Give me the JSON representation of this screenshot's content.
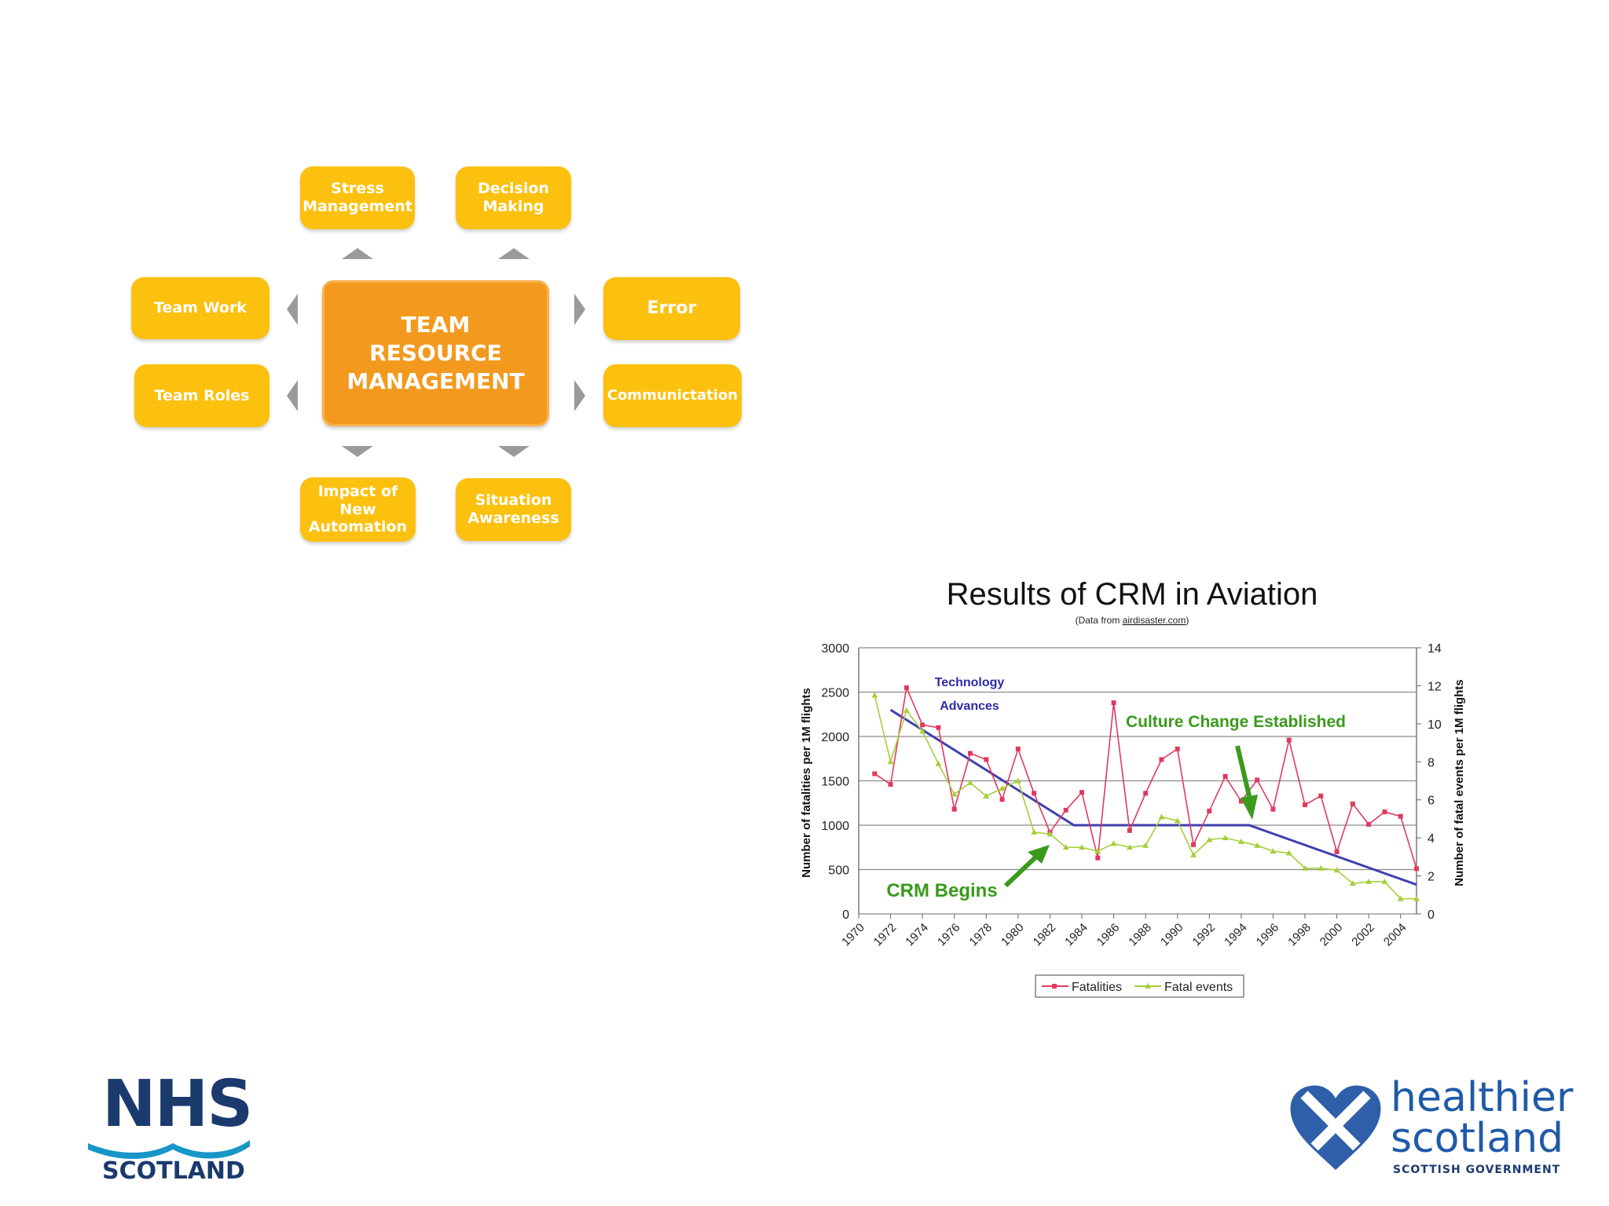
{
  "diagram": {
    "center": "TEAM\nRESOURCE\nMANAGEMENT",
    "boxes": {
      "stress": "Stress\nManagement",
      "decision": "Decision\nMaking",
      "teamwork": "Team Work",
      "error": "Error",
      "roles": "Team Roles",
      "communication": "Communictation",
      "automation": "Impact of\nNew\nAutomation",
      "situation": "Situation\nAwareness"
    },
    "colors": {
      "box": "#fcc10f",
      "center": "#f39a1e",
      "arrow": "#9a9a9a"
    }
  },
  "chart_data": {
    "type": "line",
    "title": "Results of CRM in Aviation",
    "subtitle_prefix": "(Data from ",
    "subtitle_link": "airdisaster.com",
    "subtitle_suffix": ")",
    "ylabel": "Number of fatalities per 1M flights",
    "y2label": "Number of fatal events per 1M flights",
    "ylim": [
      0,
      3000
    ],
    "y2lim": [
      0,
      14
    ],
    "yticks": [
      0,
      500,
      1000,
      1500,
      2000,
      2500,
      3000
    ],
    "y2ticks": [
      0,
      2,
      4,
      6,
      8,
      10,
      12,
      14
    ],
    "xlim": [
      1970,
      2005
    ],
    "xticks": [
      "1970",
      "1972",
      "1974",
      "1976",
      "1978",
      "1980",
      "1982",
      "1984",
      "1986",
      "1988",
      "1990",
      "1992",
      "1994",
      "1996",
      "1998",
      "2000",
      "2002",
      "2004"
    ],
    "grid": true,
    "legend_position": "bottom",
    "series": [
      {
        "name": "Fatalities",
        "axis": "left",
        "color": "#e03a5e",
        "x": [
          1971,
          1972,
          1973,
          1974,
          1975,
          1976,
          1977,
          1978,
          1979,
          1980,
          1981,
          1982,
          1983,
          1984,
          1985,
          1986,
          1987,
          1988,
          1989,
          1990,
          1991,
          1992,
          1993,
          1994,
          1995,
          1996,
          1997,
          1998,
          1999,
          2000,
          2001,
          2002,
          2003,
          2004,
          2005
        ],
        "values": [
          1580,
          1460,
          2550,
          2130,
          2100,
          1180,
          1810,
          1740,
          1290,
          1860,
          1360,
          920,
          1170,
          1370,
          630,
          2380,
          940,
          1360,
          1740,
          1860,
          780,
          1160,
          1550,
          1270,
          1510,
          1180,
          1960,
          1230,
          1330,
          700,
          1240,
          1010,
          1150,
          1100,
          510
        ]
      },
      {
        "name": "Fatal events",
        "axis": "right",
        "color": "#a4cf3a",
        "x": [
          1971,
          1972,
          1973,
          1974,
          1975,
          1976,
          1977,
          1978,
          1979,
          1980,
          1981,
          1982,
          1983,
          1984,
          1985,
          1986,
          1987,
          1988,
          1989,
          1990,
          1991,
          1992,
          1993,
          1994,
          1995,
          1996,
          1997,
          1998,
          1999,
          2000,
          2001,
          2002,
          2003,
          2004,
          2005
        ],
        "values": [
          11.5,
          8,
          10.7,
          9.6,
          7.9,
          6.3,
          6.9,
          6.2,
          6.6,
          7,
          4.3,
          4.2,
          3.5,
          3.5,
          3.3,
          3.7,
          3.5,
          3.6,
          5.1,
          4.9,
          3.1,
          3.9,
          4,
          3.8,
          3.6,
          3.3,
          3.2,
          2.4,
          2.4,
          2.3,
          1.6,
          1.7,
          1.7,
          0.8,
          0.8
        ]
      }
    ],
    "trend": {
      "color": "#3f3faf",
      "x": [
        1972,
        1983.5,
        1994.5,
        2005
      ],
      "values": [
        2300,
        1000,
        1000,
        330
      ]
    },
    "annotations": {
      "technology": "Technology",
      "advances": "Advances",
      "culture": "Culture Change Established",
      "crm": "CRM Begins"
    }
  },
  "logos": {
    "nhs": "NHS",
    "nhs_sub": "SCOTLAND",
    "hs1": "healthier",
    "hs2": "scotland",
    "hs3": "SCOTTISH GOVERNMENT"
  }
}
